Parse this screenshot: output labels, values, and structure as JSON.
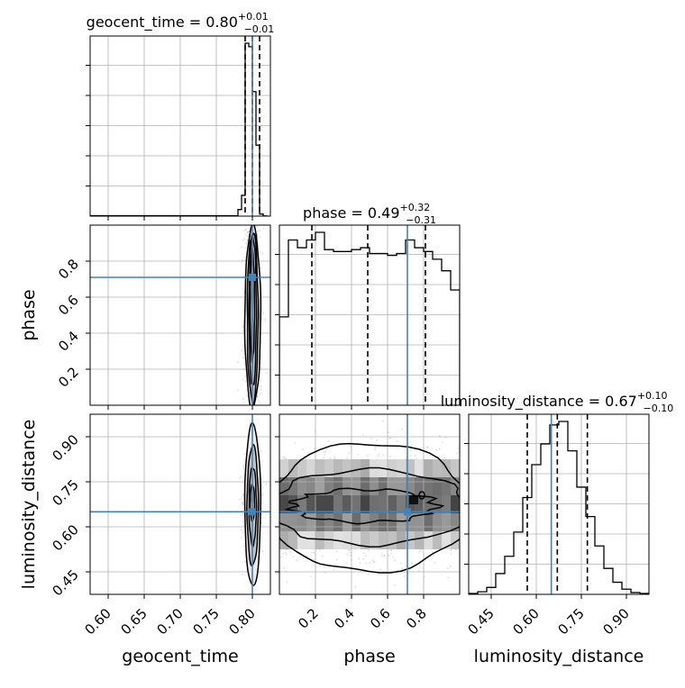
{
  "chart_data": {
    "type": "corner",
    "parameters": [
      "geocent_time",
      "phase",
      "luminosity_distance"
    ],
    "truth": {
      "geocent_time": 0.8,
      "phase": 0.71,
      "luminosity_distance": 0.65
    },
    "colors": {
      "truth": "#4682b4",
      "hist": "#000000",
      "grid": "#b0b0b0",
      "quantile": "#000000"
    },
    "grid": true,
    "titles": [
      {
        "name": "geocent_time",
        "prefix": "geocent_time = 0.80",
        "sup": "+0.01",
        "sub": "−0.01"
      },
      {
        "name": "phase",
        "prefix": "phase = 0.49",
        "sup": "+0.32",
        "sub": "−0.31"
      },
      {
        "name": "luminosity_distance",
        "prefix": "luminosity_distance = 0.67",
        "sup": "+0.10",
        "sub": "−0.10"
      }
    ],
    "axis_labels": {
      "x": [
        "geocent_time",
        "phase",
        "luminosity_distance"
      ],
      "y": [
        "phase",
        "luminosity_distance"
      ]
    },
    "ranges": {
      "geocent_time": [
        0.575,
        0.825
      ],
      "phase": [
        0.0,
        1.0
      ],
      "luminosity_distance": [
        0.375,
        0.975
      ]
    },
    "ticks": {
      "geocent_time": {
        "values": [
          0.6,
          0.65,
          0.7,
          0.75,
          0.8
        ],
        "labels": [
          "0.60",
          "0.65",
          "0.70",
          "0.75",
          "0.80"
        ]
      },
      "phase": {
        "values": [
          0.2,
          0.4,
          0.6,
          0.8
        ],
        "labels": [
          "0.2",
          "0.4",
          "0.6",
          "0.8"
        ]
      },
      "luminosity_distance": {
        "values": [
          0.45,
          0.6,
          0.75,
          0.9
        ],
        "labels": [
          "0.45",
          "0.60",
          "0.75",
          "0.90"
        ]
      }
    },
    "quantiles": {
      "geocent_time": [
        0.79,
        0.8,
        0.81
      ],
      "phase": [
        0.18,
        0.49,
        0.81
      ],
      "luminosity_distance": [
        0.57,
        0.67,
        0.77
      ]
    },
    "histograms": {
      "geocent_time": {
        "edges": [
          0.775,
          0.78,
          0.785,
          0.79,
          0.795,
          0.8,
          0.805,
          0.81,
          0.815,
          0.82
        ],
        "counts": [
          2,
          38,
          120,
          1000,
          980,
          720,
          410,
          12,
          1
        ]
      },
      "phase": {
        "edges": [
          0.0,
          0.05,
          0.1,
          0.15,
          0.2,
          0.25,
          0.3,
          0.35,
          0.4,
          0.45,
          0.5,
          0.55,
          0.6,
          0.65,
          0.7,
          0.75,
          0.8,
          0.85,
          0.9,
          0.95,
          1.0
        ],
        "counts": [
          460,
          860,
          820,
          860,
          900,
          810,
          800,
          800,
          810,
          820,
          790,
          790,
          780,
          790,
          860,
          820,
          800,
          760,
          700,
          600
        ]
      },
      "luminosity_distance": {
        "edges": [
          0.375,
          0.405,
          0.435,
          0.465,
          0.495,
          0.525,
          0.555,
          0.585,
          0.615,
          0.645,
          0.675,
          0.705,
          0.735,
          0.765,
          0.795,
          0.825,
          0.855,
          0.885,
          0.915,
          0.945,
          0.975
        ],
        "counts": [
          5,
          15,
          40,
          120,
          220,
          360,
          560,
          750,
          870,
          980,
          1000,
          830,
          620,
          450,
          280,
          150,
          70,
          30,
          10,
          5
        ]
      }
    }
  }
}
